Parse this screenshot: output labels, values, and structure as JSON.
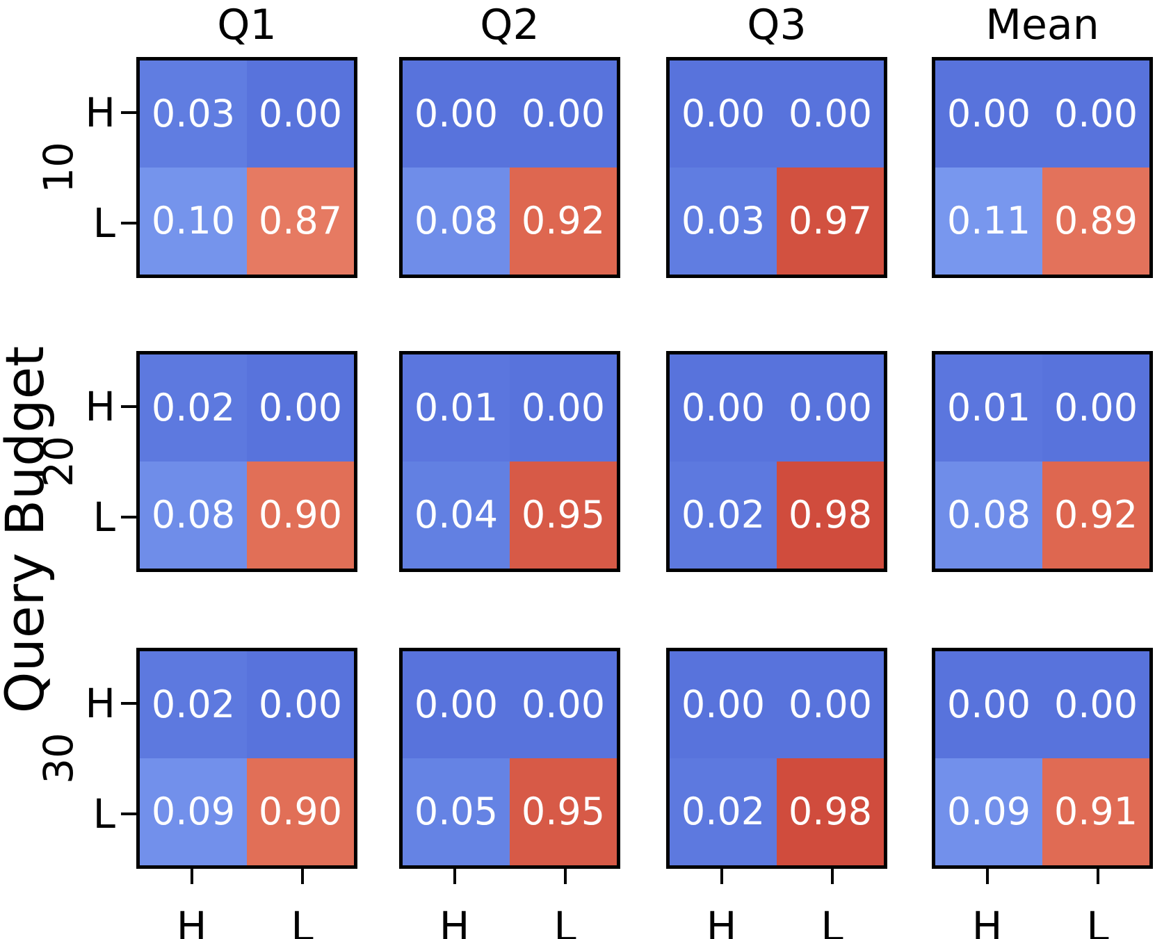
{
  "chart_data": {
    "type": "heatmap",
    "layout": "3x4 grid of 2x2 annotated heatmaps",
    "col_titles": [
      "Q1",
      "Q2",
      "Q3",
      "Mean"
    ],
    "row_labels": [
      "10",
      "20",
      "30"
    ],
    "ylabel": "Query Budget",
    "xlabel": "",
    "x_tick_labels": [
      "H",
      "L"
    ],
    "y_tick_labels": [
      "H",
      "L"
    ],
    "vmin": 0,
    "vmax": 1,
    "value_format": "2 decimals",
    "legend": "none",
    "grid_lines": "off",
    "matrices": [
      [
        [
          [
            0.03,
            0.0
          ],
          [
            0.1,
            0.87
          ]
        ],
        [
          [
            0.0,
            0.0
          ],
          [
            0.08,
            0.92
          ]
        ],
        [
          [
            0.0,
            0.0
          ],
          [
            0.03,
            0.97
          ]
        ],
        [
          [
            0.0,
            0.0
          ],
          [
            0.11,
            0.89
          ]
        ]
      ],
      [
        [
          [
            0.02,
            0.0
          ],
          [
            0.08,
            0.9
          ]
        ],
        [
          [
            0.01,
            0.0
          ],
          [
            0.04,
            0.95
          ]
        ],
        [
          [
            0.0,
            0.0
          ],
          [
            0.02,
            0.98
          ]
        ],
        [
          [
            0.01,
            0.0
          ],
          [
            0.08,
            0.92
          ]
        ]
      ],
      [
        [
          [
            0.02,
            0.0
          ],
          [
            0.09,
            0.9
          ]
        ],
        [
          [
            0.0,
            0.0
          ],
          [
            0.05,
            0.95
          ]
        ],
        [
          [
            0.0,
            0.0
          ],
          [
            0.02,
            0.98
          ]
        ],
        [
          [
            0.0,
            0.0
          ],
          [
            0.09,
            0.91
          ]
        ]
      ]
    ]
  },
  "colors": {
    "background": "#ffffff",
    "cell_text": "#ffffff",
    "axis_text": "#000000",
    "spine": "#000000",
    "colormap_anchors": [
      {
        "v": 0.0,
        "hex": "#5873DC"
      },
      {
        "v": 0.05,
        "hex": "#6583E4"
      },
      {
        "v": 0.11,
        "hex": "#7897EE"
      },
      {
        "v": 0.5,
        "hex": "#DDDDDD"
      },
      {
        "v": 0.87,
        "hex": "#E67A62"
      },
      {
        "v": 0.92,
        "hex": "#DE6750"
      },
      {
        "v": 0.98,
        "hex": "#D04C3D"
      },
      {
        "v": 1.0,
        "hex": "#CB4639"
      }
    ]
  }
}
